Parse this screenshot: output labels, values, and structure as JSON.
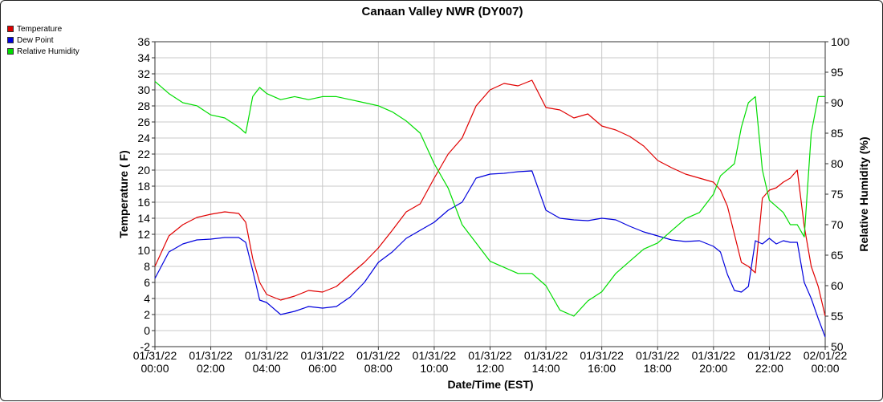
{
  "chart_data": {
    "type": "line",
    "title": "Canaan Valley NWR (DY007)",
    "xlabel": "Date/Time (EST)",
    "ylabel": "Temperature ( F)",
    "y2label": "Relative Humidity (%)",
    "ylim": [
      -2,
      36
    ],
    "y2lim": [
      50,
      100
    ],
    "grid": true,
    "legend_position": "top-left",
    "x_ticks": [
      {
        "date": "01/31/22",
        "time": "00:00"
      },
      {
        "date": "01/31/22",
        "time": "02:00"
      },
      {
        "date": "01/31/22",
        "time": "04:00"
      },
      {
        "date": "01/31/22",
        "time": "06:00"
      },
      {
        "date": "01/31/22",
        "time": "08:00"
      },
      {
        "date": "01/31/22",
        "time": "10:00"
      },
      {
        "date": "01/31/22",
        "time": "12:00"
      },
      {
        "date": "01/31/22",
        "time": "14:00"
      },
      {
        "date": "01/31/22",
        "time": "16:00"
      },
      {
        "date": "01/31/22",
        "time": "18:00"
      },
      {
        "date": "01/31/22",
        "time": "20:00"
      },
      {
        "date": "01/31/22",
        "time": "22:00"
      },
      {
        "date": "02/01/22",
        "time": "00:00"
      }
    ],
    "y_ticks": [
      "-2",
      "0",
      "2",
      "4",
      "6",
      "8",
      "10",
      "12",
      "14",
      "16",
      "18",
      "20",
      "22",
      "24",
      "26",
      "28",
      "30",
      "32",
      "34",
      "36"
    ],
    "y2_ticks": [
      "50",
      "55",
      "60",
      "65",
      "70",
      "75",
      "80",
      "85",
      "90",
      "95",
      "100"
    ],
    "hours": [
      0,
      0.5,
      1,
      1.5,
      2,
      2.5,
      3,
      3.25,
      3.5,
      3.75,
      4,
      4.5,
      5,
      5.5,
      6,
      6.5,
      7,
      7.5,
      8,
      8.5,
      9,
      9.5,
      10,
      10.5,
      11,
      11.5,
      12,
      12.5,
      13,
      13.5,
      14,
      14.5,
      15,
      15.5,
      16,
      16.5,
      17,
      17.5,
      18,
      18.5,
      19,
      19.5,
      20,
      20.25,
      20.5,
      20.75,
      21,
      21.25,
      21.5,
      21.75,
      22,
      22.25,
      22.5,
      22.75,
      23,
      23.25,
      23.5,
      23.75,
      24
    ],
    "series": [
      {
        "name": "Temperature",
        "color": "#e00000",
        "axis": "left",
        "values": [
          8,
          11.8,
          13.2,
          14.1,
          14.5,
          14.8,
          14.6,
          13.5,
          9,
          6,
          4.5,
          3.8,
          4.3,
          5,
          4.8,
          5.5,
          7,
          8.5,
          10.3,
          12.5,
          14.8,
          15.8,
          19,
          22,
          24,
          28,
          30,
          30.8,
          30.5,
          31.2,
          27.8,
          27.5,
          26.5,
          27,
          25.5,
          25,
          24.2,
          23,
          21.2,
          20.3,
          19.5,
          19,
          18.5,
          17.5,
          15.5,
          12,
          8.5,
          8,
          7.2,
          16.5,
          17.5,
          17.8,
          18.5,
          19,
          20,
          13,
          8,
          5.5,
          1.8
        ]
      },
      {
        "name": "Dew Point",
        "color": "#0000dd",
        "axis": "left",
        "values": [
          6.5,
          9.8,
          10.8,
          11.3,
          11.4,
          11.6,
          11.6,
          11,
          7.5,
          3.8,
          3.5,
          2,
          2.4,
          3,
          2.8,
          3,
          4.2,
          6,
          8.5,
          9.8,
          11.5,
          12.5,
          13.5,
          15,
          16,
          19,
          19.5,
          19.6,
          19.8,
          19.9,
          15,
          14,
          13.8,
          13.7,
          14,
          13.8,
          13,
          12.3,
          11.8,
          11.3,
          11.1,
          11.2,
          10.5,
          9.8,
          7,
          5,
          4.8,
          5.5,
          11.2,
          10.8,
          11.5,
          10.8,
          11.2,
          11,
          11,
          6,
          4,
          1.5,
          -0.8
        ]
      },
      {
        "name": "Relative Humidity",
        "color": "#00dd00",
        "axis": "right",
        "values": [
          93.5,
          91.5,
          90,
          89.5,
          88,
          87.5,
          86,
          85,
          91,
          92.5,
          91.5,
          90.5,
          91,
          90.5,
          91,
          91,
          90.5,
          90,
          89.5,
          88.5,
          87,
          85,
          80,
          76,
          70,
          67,
          64,
          63,
          62,
          62,
          60,
          56,
          55,
          57.5,
          59,
          62,
          64,
          66,
          67,
          69,
          71,
          72,
          75,
          78,
          79,
          80,
          86,
          90,
          91,
          79,
          74,
          73,
          72,
          70,
          70,
          68,
          85,
          91,
          91
        ]
      }
    ]
  }
}
